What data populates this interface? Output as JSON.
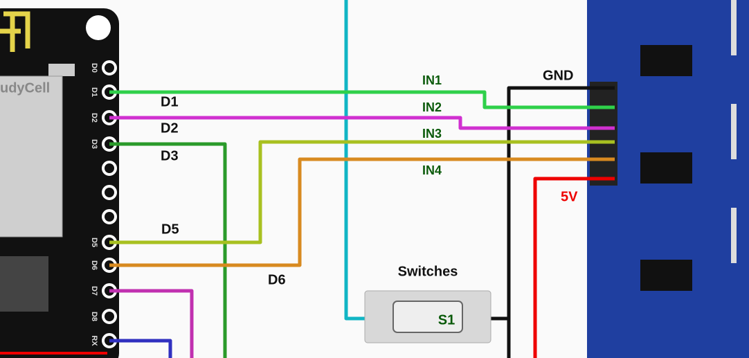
{
  "board": {
    "brand": "udyCell",
    "pins": [
      "D0",
      "D1",
      "D2",
      "D3",
      "D5",
      "D6",
      "D7",
      "D8",
      "RX"
    ]
  },
  "wire_labels": {
    "d1": "D1",
    "d2": "D2",
    "d3": "D3",
    "d5": "D5",
    "d6": "D6"
  },
  "relay_labels": {
    "in1": "IN1",
    "in2": "IN2",
    "in3": "IN3",
    "in4": "IN4",
    "gnd": "GND",
    "vcc": "5V"
  },
  "switch": {
    "title": "Switches",
    "label": "S1"
  }
}
